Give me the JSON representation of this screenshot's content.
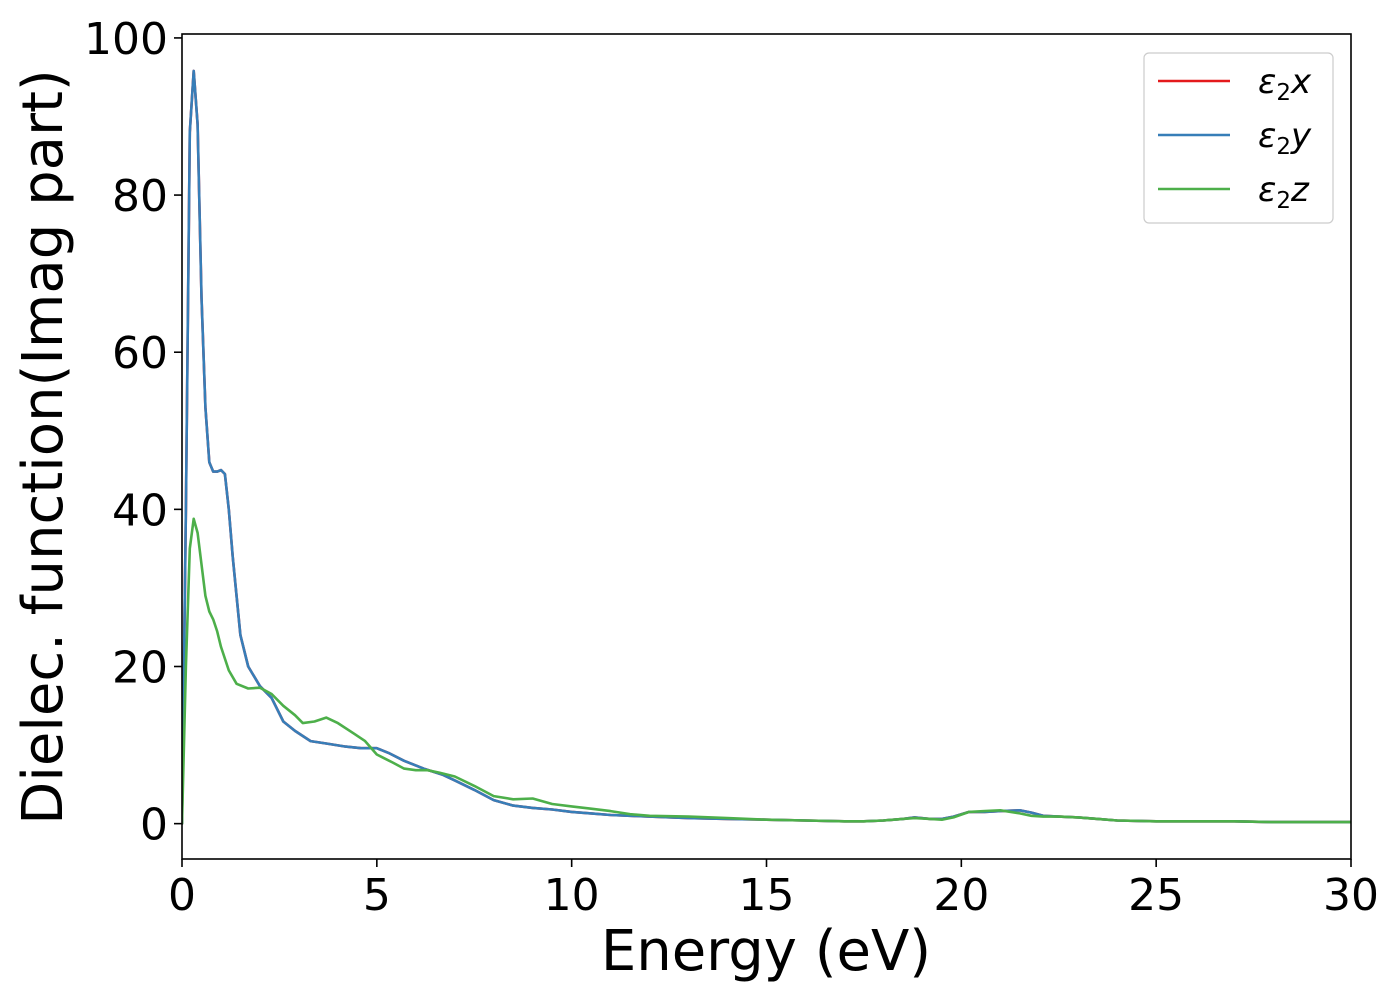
{
  "chart_data": {
    "type": "line",
    "xlabel": "Energy (eV)",
    "ylabel": "Dielec. function(Imag part)",
    "xlim": [
      0,
      30
    ],
    "ylim": [
      -4.5,
      100.5
    ],
    "xticks": [
      0,
      5,
      10,
      15,
      20,
      25,
      30
    ],
    "xtick_labels": [
      "0",
      "5",
      "10",
      "15",
      "20",
      "25",
      "30"
    ],
    "yticks": [
      0,
      20,
      40,
      60,
      80,
      100
    ],
    "ytick_labels": [
      "0",
      "20",
      "40",
      "60",
      "80",
      "100"
    ],
    "grid": false,
    "legend_position": "top-right",
    "series": [
      {
        "name": "ε₂x",
        "legend_base": "ε",
        "legend_sub": "2",
        "legend_var": "x",
        "color": "#e41a1c",
        "x": [
          0,
          0.1,
          0.2,
          0.3,
          0.4,
          0.5,
          0.6,
          0.7,
          0.8,
          0.9,
          1.0,
          1.1,
          1.2,
          1.3,
          1.5,
          1.7,
          2.0,
          2.3,
          2.6,
          2.9,
          3.3,
          3.7,
          4.2,
          4.6,
          5.0,
          5.3,
          5.7,
          6.2,
          6.7,
          7.0,
          7.5,
          8.0,
          8.5,
          9.0,
          9.5,
          10.0,
          10.5,
          11.0,
          12.0,
          13.0,
          14.0,
          15.0,
          16.0,
          17.0,
          17.5,
          18.0,
          18.5,
          18.8,
          19.2,
          19.5,
          19.8,
          20.2,
          20.6,
          21.0,
          21.5,
          21.8,
          22.1,
          22.5,
          23.0,
          23.5,
          24.0,
          25.0,
          26.0,
          27.0,
          28.0,
          29.0,
          30.0
        ],
        "y": [
          0,
          40,
          88,
          95.8,
          89,
          67,
          53,
          46,
          44.8,
          44.8,
          45,
          44.5,
          40,
          34,
          24,
          20,
          17.5,
          16,
          13,
          11.8,
          10.5,
          10.2,
          9.8,
          9.6,
          9.6,
          9,
          8,
          7,
          6.2,
          5.5,
          4.3,
          3,
          2.3,
          2,
          1.8,
          1.5,
          1.3,
          1.1,
          0.9,
          0.7,
          0.6,
          0.5,
          0.4,
          0.3,
          0.3,
          0.4,
          0.6,
          0.8,
          0.6,
          0.6,
          0.9,
          1.5,
          1.5,
          1.6,
          1.7,
          1.4,
          1.0,
          0.9,
          0.8,
          0.6,
          0.4,
          0.3,
          0.3,
          0.3,
          0.2,
          0.2,
          0.2
        ]
      },
      {
        "name": "ε₂y",
        "legend_base": "ε",
        "legend_sub": "2",
        "legend_var": "y",
        "color": "#377eb8",
        "x": [
          0,
          0.1,
          0.2,
          0.3,
          0.4,
          0.5,
          0.6,
          0.7,
          0.8,
          0.9,
          1.0,
          1.1,
          1.2,
          1.3,
          1.5,
          1.7,
          2.0,
          2.3,
          2.6,
          2.9,
          3.3,
          3.7,
          4.2,
          4.6,
          5.0,
          5.3,
          5.7,
          6.2,
          6.7,
          7.0,
          7.5,
          8.0,
          8.5,
          9.0,
          9.5,
          10.0,
          10.5,
          11.0,
          12.0,
          13.0,
          14.0,
          15.0,
          16.0,
          17.0,
          17.5,
          18.0,
          18.5,
          18.8,
          19.2,
          19.5,
          19.8,
          20.2,
          20.6,
          21.0,
          21.5,
          21.8,
          22.1,
          22.5,
          23.0,
          23.5,
          24.0,
          25.0,
          26.0,
          27.0,
          28.0,
          29.0,
          30.0
        ],
        "y": [
          0,
          40,
          88,
          95.8,
          89,
          67,
          53,
          46,
          44.8,
          44.8,
          45,
          44.5,
          40,
          34,
          24,
          20,
          17.5,
          16,
          13,
          11.8,
          10.5,
          10.2,
          9.8,
          9.6,
          9.6,
          9,
          8,
          7,
          6.2,
          5.5,
          4.3,
          3,
          2.3,
          2,
          1.8,
          1.5,
          1.3,
          1.1,
          0.9,
          0.7,
          0.6,
          0.5,
          0.4,
          0.3,
          0.3,
          0.4,
          0.6,
          0.8,
          0.6,
          0.6,
          0.9,
          1.5,
          1.5,
          1.6,
          1.7,
          1.4,
          1.0,
          0.9,
          0.8,
          0.6,
          0.4,
          0.3,
          0.3,
          0.3,
          0.2,
          0.2,
          0.2
        ]
      },
      {
        "name": "ε₂z",
        "legend_base": "ε",
        "legend_sub": "2",
        "legend_var": "z",
        "color": "#4daf4a",
        "x": [
          0,
          0.1,
          0.2,
          0.3,
          0.4,
          0.5,
          0.6,
          0.7,
          0.8,
          0.9,
          1.0,
          1.2,
          1.4,
          1.7,
          2.0,
          2.3,
          2.6,
          2.9,
          3.1,
          3.4,
          3.7,
          4.0,
          4.4,
          4.7,
          5.0,
          5.4,
          5.7,
          6.0,
          6.3,
          6.6,
          7.0,
          7.5,
          8.0,
          8.5,
          9.0,
          9.5,
          10.0,
          10.5,
          11.0,
          11.5,
          12.0,
          13.0,
          14.0,
          15.0,
          16.0,
          17.0,
          17.5,
          18.0,
          18.5,
          18.8,
          19.2,
          19.5,
          19.8,
          20.2,
          20.6,
          21.0,
          21.5,
          21.8,
          22.1,
          22.5,
          23.0,
          23.5,
          24.0,
          25.0,
          26.0,
          27.0,
          28.0,
          29.0,
          30.0
        ],
        "y": [
          0,
          20,
          35,
          38.8,
          37,
          33,
          29,
          27,
          26,
          24.5,
          22.5,
          19.5,
          17.8,
          17.2,
          17.3,
          16.5,
          15,
          13.8,
          12.8,
          13,
          13.5,
          12.8,
          11.5,
          10.5,
          8.8,
          7.8,
          7,
          6.8,
          6.8,
          6.5,
          6,
          4.8,
          3.5,
          3.1,
          3.2,
          2.5,
          2.2,
          1.9,
          1.6,
          1.2,
          1.0,
          0.9,
          0.7,
          0.5,
          0.4,
          0.3,
          0.3,
          0.4,
          0.6,
          0.7,
          0.6,
          0.5,
          0.8,
          1.5,
          1.6,
          1.7,
          1.3,
          1.0,
          0.9,
          0.9,
          0.8,
          0.6,
          0.4,
          0.3,
          0.3,
          0.3,
          0.2,
          0.2,
          0.2
        ]
      }
    ]
  }
}
